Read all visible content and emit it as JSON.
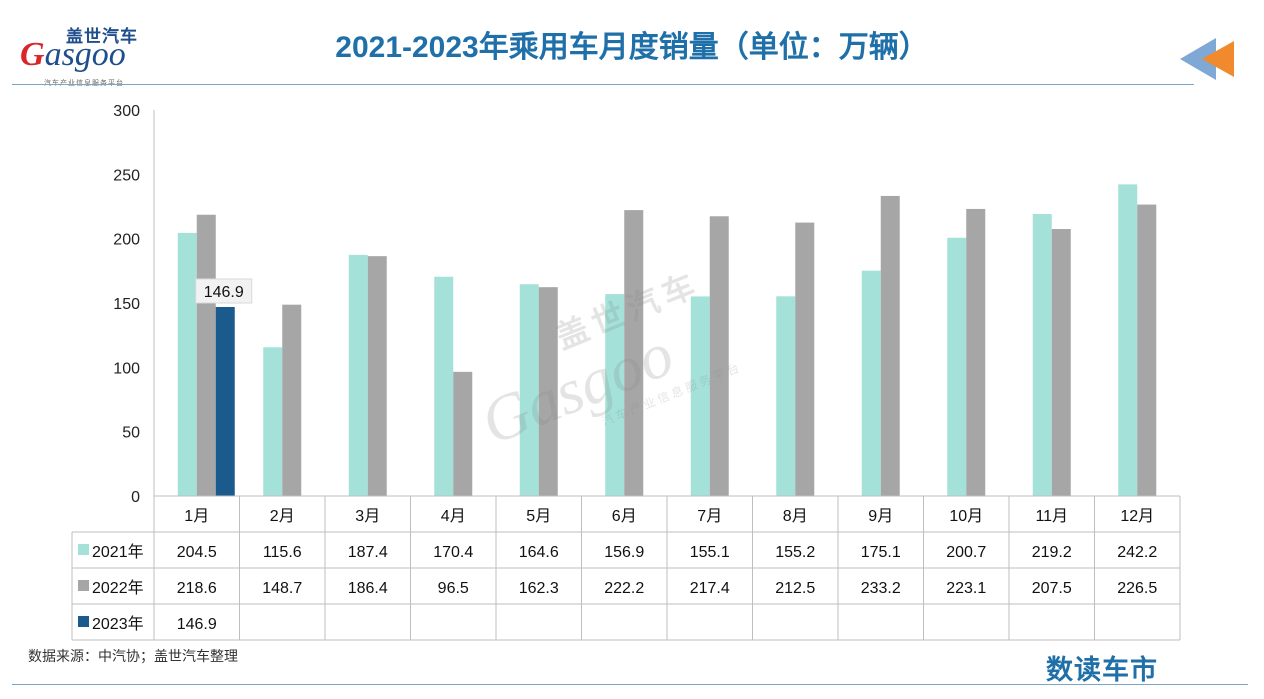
{
  "logo": {
    "cn": "盖世汽车",
    "en_g": "G",
    "en_rest": "asgoo",
    "sub": "汽车产业信息服务平台"
  },
  "header": {
    "title": "2021-2023年乘用车月度销量（单位：万辆）"
  },
  "watermark": {
    "cn": "盖世汽车",
    "en": "Gasgoo",
    "sub": "汽车产业信息服务平台"
  },
  "footer": {
    "source": "数据来源：中汽协；盖世汽车整理",
    "brand": "数读车市"
  },
  "colors": {
    "s2021": "#a3e1d9",
    "s2022": "#a6a6a6",
    "s2023": "#1a5a8c",
    "title": "#1f6fa8"
  },
  "chart_data": {
    "type": "bar",
    "title": "2021-2023年乘用车月度销量（单位：万辆）",
    "categories": [
      "1月",
      "2月",
      "3月",
      "4月",
      "5月",
      "6月",
      "7月",
      "8月",
      "9月",
      "10月",
      "11月",
      "12月"
    ],
    "series": [
      {
        "name": "2021年",
        "color": "#a3e1d9",
        "values": [
          204.5,
          115.6,
          187.4,
          170.4,
          164.6,
          156.9,
          155.1,
          155.2,
          175.1,
          200.7,
          219.2,
          242.2
        ]
      },
      {
        "name": "2022年",
        "color": "#a6a6a6",
        "values": [
          218.6,
          148.7,
          186.4,
          96.5,
          162.3,
          222.2,
          217.4,
          212.5,
          233.2,
          223.1,
          207.5,
          226.5
        ]
      },
      {
        "name": "2023年",
        "color": "#1a5a8c",
        "values": [
          146.9,
          null,
          null,
          null,
          null,
          null,
          null,
          null,
          null,
          null,
          null,
          null
        ]
      }
    ],
    "ylim": [
      0,
      300
    ],
    "yticks": [
      0,
      50,
      100,
      150,
      200,
      250,
      300
    ],
    "annotations": [
      {
        "series": "2023年",
        "category": "1月",
        "label": "146.9"
      }
    ],
    "grid": false,
    "legend": "data-table"
  }
}
